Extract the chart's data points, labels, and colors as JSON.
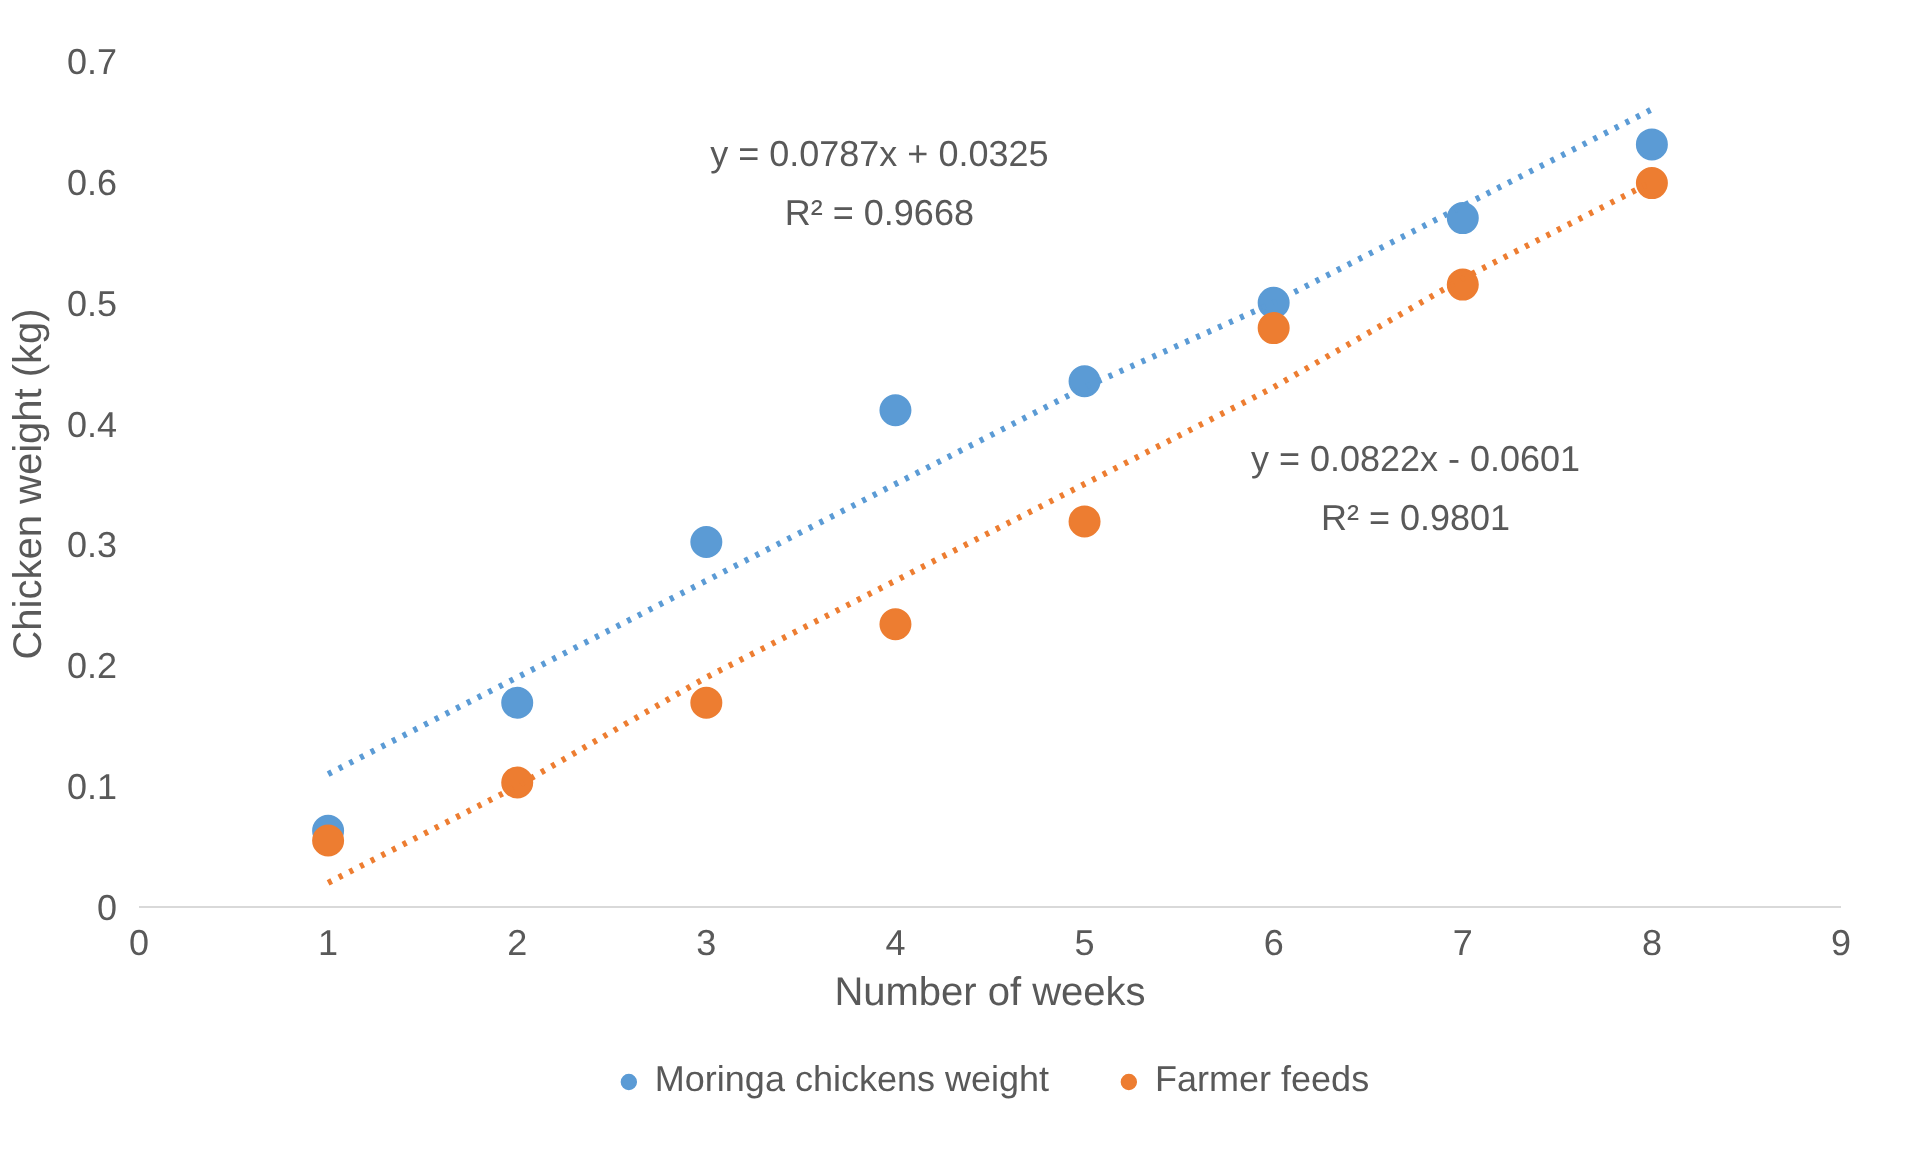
{
  "chart_data": {
    "type": "scatter",
    "xlabel": "Number of weeks",
    "ylabel": "Chicken weight (kg)",
    "xlim": [
      0,
      9
    ],
    "ylim": [
      0,
      0.7
    ],
    "xticks": [
      0,
      1,
      2,
      3,
      4,
      5,
      6,
      7,
      8,
      9
    ],
    "yticks": [
      0,
      0.1,
      0.2,
      0.3,
      0.4,
      0.5,
      0.6,
      0.7
    ],
    "grid": false,
    "legend": "bottom",
    "marker": "circle",
    "x": [
      1,
      2,
      3,
      4,
      5,
      6,
      7,
      8
    ],
    "series": [
      {
        "name": "Moringa chickens weight",
        "color": "#5b9bd5",
        "values": [
          0.063,
          0.169,
          0.302,
          0.411,
          0.435,
          0.5,
          0.57,
          0.631
        ]
      },
      {
        "name": "Farmer feeds",
        "color": "#ed7d31",
        "values": [
          0.055,
          0.103,
          0.169,
          0.234,
          0.319,
          0.479,
          0.515,
          0.599
        ]
      },
      {
        "type": "line",
        "line_style": "dotted",
        "marker": "none",
        "color": "#5b9bd5",
        "values": [
          0.11,
          0.19,
          0.27,
          0.35,
          0.43,
          0.5,
          0.58,
          0.66
        ]
      },
      {
        "type": "line",
        "line_style": "dotted",
        "marker": "none",
        "color": "#ed7d31",
        "values": [
          0.02,
          0.1,
          0.19,
          0.27,
          0.35,
          0.43,
          0.52,
          0.6
        ]
      }
    ],
    "annotations": [
      "y = 0.0787x + 0.0325",
      "R² = 0.9668",
      "y = 0.0822x - 0.0601",
      "R² = 0.9801"
    ]
  }
}
